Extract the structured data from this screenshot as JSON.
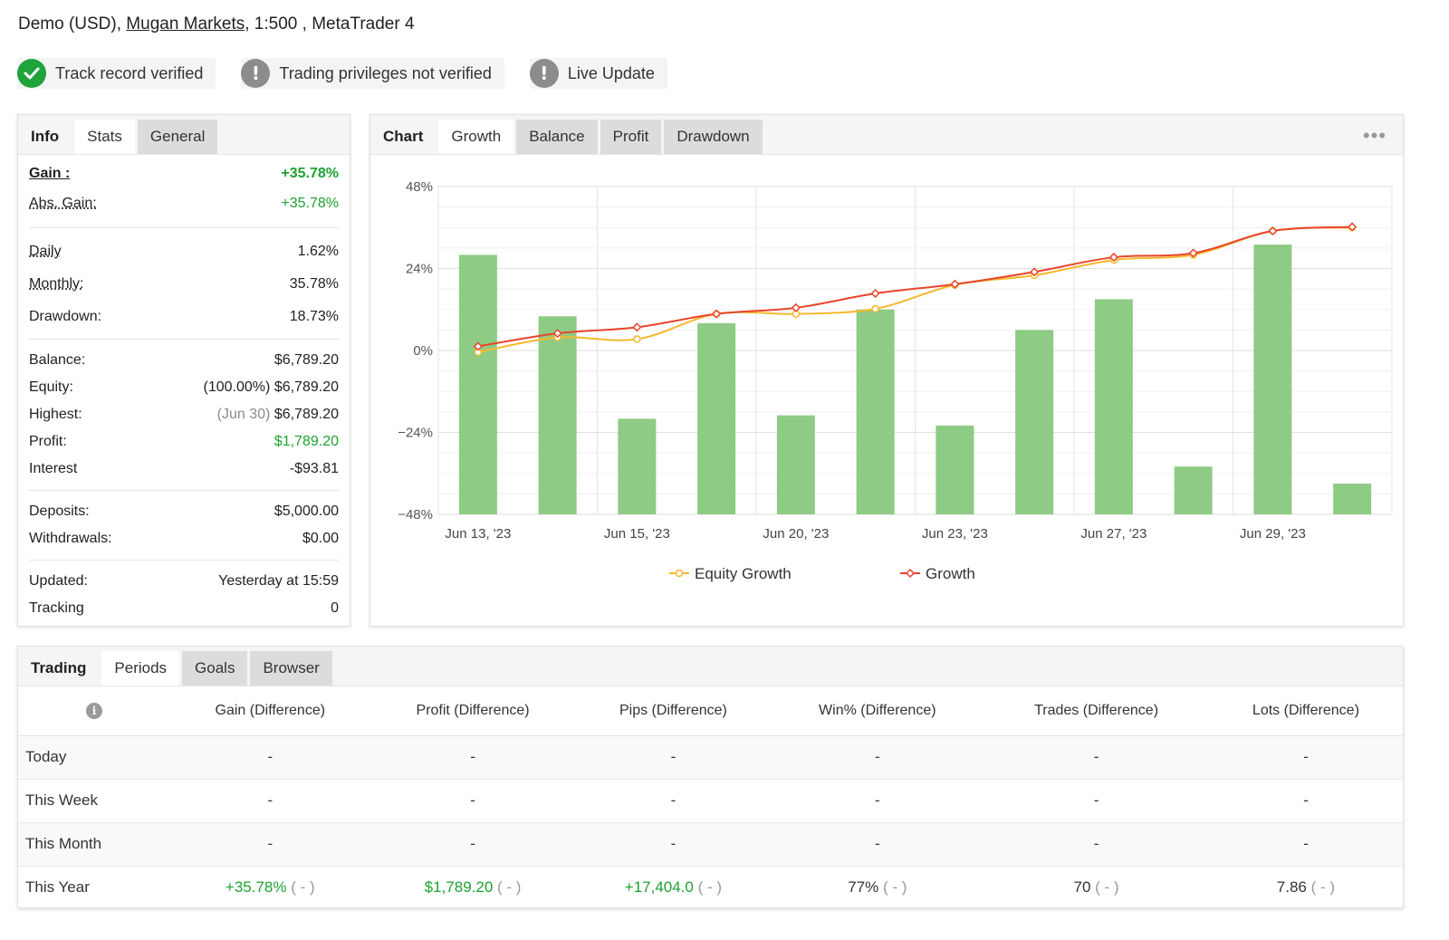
{
  "account": {
    "prefix": "Demo (USD), ",
    "broker": "Mugan Markets",
    "suffix": ", 1:500 , MetaTrader 4"
  },
  "badges": [
    {
      "label": "Track record verified",
      "icon": "check-icon",
      "status": "verified"
    },
    {
      "label": "Trading privileges not verified",
      "icon": "exclamation-icon",
      "status": "warning"
    },
    {
      "label": "Live Update",
      "icon": "exclamation-icon",
      "status": "warning"
    }
  ],
  "info_panel": {
    "tabs": [
      "Info",
      "Stats",
      "General"
    ],
    "stats": {
      "gain_label": "Gain :",
      "gain_value": "+35.78%",
      "abs_gain_label": "Abs. Gain:",
      "abs_gain_value": "+35.78%",
      "daily_label": "Daily",
      "daily_value": "1.62%",
      "monthly_label": "Monthly:",
      "monthly_value": "35.78%",
      "drawdown_label": "Drawdown:",
      "drawdown_value": "18.73%",
      "balance_label": "Balance:",
      "balance_value": "$6,789.20",
      "equity_label": "Equity:",
      "equity_note": "(100.00%)",
      "equity_value": "$6,789.20",
      "highest_label": "Highest:",
      "highest_note": "(Jun 30)",
      "highest_value": "$6,789.20",
      "profit_label": "Profit:",
      "profit_value": "$1,789.20",
      "interest_label": "Interest",
      "interest_value": "-$93.81",
      "deposits_label": "Deposits:",
      "deposits_value": "$5,000.00",
      "withdrawals_label": "Withdrawals:",
      "withdrawals_value": "$0.00",
      "updated_label": "Updated:",
      "updated_value": "Yesterday at 15:59",
      "tracking_label": "Tracking",
      "tracking_value": "0"
    }
  },
  "chart_panel": {
    "tabs": [
      "Chart",
      "Growth",
      "Balance",
      "Profit",
      "Drawdown"
    ],
    "menu_icon": "more-dots-icon"
  },
  "chart_data": {
    "type": "bar",
    "x_labels": [
      "Jun 13, '23",
      "Jun 15, '23",
      "Jun 20, '23",
      "Jun 23, '23",
      "Jun 27, '23",
      "Jun 29, '23"
    ],
    "ylim": [
      -48,
      48
    ],
    "yticks": [
      "48%",
      "24%",
      "0%",
      "−24%",
      "−48%"
    ],
    "bars": [
      28,
      10,
      -20,
      8,
      -19,
      12,
      -22,
      6,
      15,
      -34,
      31,
      -39
    ],
    "series": [
      {
        "name": "Equity Growth",
        "color": "#f5b82e",
        "type": "line",
        "values": [
          -0.5,
          3.8,
          3.3,
          10.7,
          10.7,
          12.2,
          19.2,
          22,
          26.5,
          28,
          35,
          36
        ]
      },
      {
        "name": "Growth",
        "color": "#e8452c",
        "type": "line",
        "values": [
          1.2,
          5,
          6.8,
          10.7,
          12.5,
          16.7,
          19.4,
          23,
          27.3,
          28.5,
          35,
          36.2
        ]
      }
    ],
    "bar_color": "#8ecb84",
    "legend_position": "bottom",
    "grid": true
  },
  "trading_panel": {
    "tabs": [
      "Trading",
      "Periods",
      "Goals",
      "Browser"
    ],
    "columns": [
      "Gain (Difference)",
      "Profit (Difference)",
      "Pips (Difference)",
      "Win% (Difference)",
      "Trades (Difference)",
      "Lots (Difference)"
    ],
    "rows": [
      {
        "label": "Today",
        "cells": [
          "-",
          "-",
          "-",
          "-",
          "-",
          "-"
        ]
      },
      {
        "label": "This Week",
        "cells": [
          "-",
          "-",
          "-",
          "-",
          "-",
          "-"
        ]
      },
      {
        "label": "This Month",
        "cells": [
          "-",
          "-",
          "-",
          "-",
          "-",
          "-"
        ]
      }
    ],
    "year_row": {
      "label": "This Year",
      "cells": [
        {
          "value": "+35.78%",
          "diff": "( - )",
          "green": true
        },
        {
          "value": "$1,789.20",
          "diff": "( - )",
          "green": true
        },
        {
          "value": "+17,404.0",
          "diff": "( - )",
          "green": true
        },
        {
          "value": "77%",
          "diff": "( - )",
          "green": false
        },
        {
          "value": "70",
          "diff": "( - )",
          "green": false
        },
        {
          "value": "7.86",
          "diff": "( - )",
          "green": false
        }
      ]
    }
  }
}
